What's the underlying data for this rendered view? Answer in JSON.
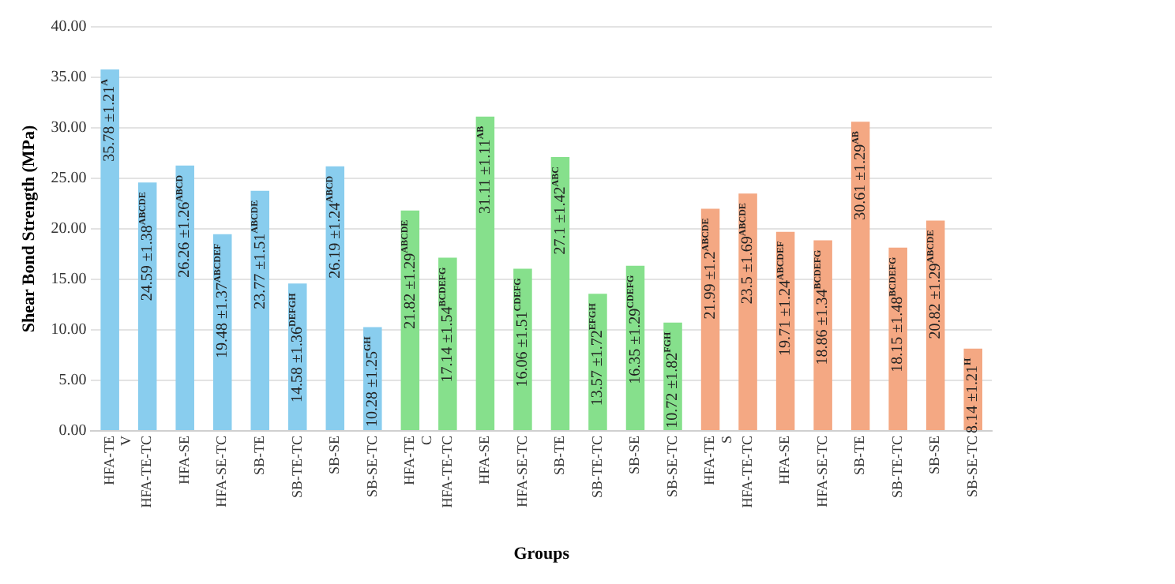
{
  "chart_data": {
    "type": "bar",
    "xlabel": "Groups",
    "ylabel": "Shear Bond Strength (MPa)",
    "categories": [
      "HFA-TE V",
      "HFA-TE-TC",
      "HFA-SE",
      "HFA-SE-TC",
      "SB-TE",
      "SB-TE-TC",
      "SB-SE",
      "SB-SE-TC",
      "HFA-TE C",
      "HFA-TE-TC",
      "HFA-SE",
      "HFA-SE-TC",
      "SB-TE",
      "SB-TE-TC",
      "SB-SE",
      "SB-SE-TC",
      "HFA-TE S",
      "HFA-TE-TC",
      "HFA-SE",
      "HFA-SE-TC",
      "SB-TE",
      "SB-TE-TC",
      "SB-SE",
      "SB-SE-TC"
    ],
    "values": [
      35.78,
      24.59,
      26.26,
      19.48,
      23.77,
      14.58,
      26.19,
      10.28,
      21.82,
      17.14,
      31.11,
      16.06,
      27.1,
      13.57,
      16.35,
      10.72,
      21.99,
      23.5,
      19.71,
      18.86,
      30.61,
      18.15,
      20.82,
      8.14
    ],
    "colors": [
      "#89cdee",
      "#89cdee",
      "#89cdee",
      "#89cdee",
      "#89cdee",
      "#89cdee",
      "#89cdee",
      "#89cdee",
      "#86e08c",
      "#86e08c",
      "#86e08c",
      "#86e08c",
      "#86e08c",
      "#86e08c",
      "#86e08c",
      "#86e08c",
      "#f4a883",
      "#f4a883",
      "#f4a883",
      "#f4a883",
      "#f4a883",
      "#f4a883",
      "#f4a883",
      "#f4a883"
    ],
    "value_labels": [
      "35.78 ±1.21$^{A}$",
      "24.59 ±1.38$^{ABCDE}$",
      "26.26 ±1.26$^{ABCD}$",
      "19.48 ±1.37$^{ABCDEF}$",
      "23.77 ±1.51$^{ABCDE}$",
      "14.58 ±1.36$^{DEFGH}$",
      "26.19 ±1.24$^{ABCD}$",
      "10.28 ±1.25$^{GH}$",
      "21.82 ±1.29$^{ABCDE}$",
      "17.14 ±1.54$^{BCDEFG}$",
      "31.11 ±1.11$^{AB}$",
      "16.06 ±1.51$^{CDEFG}$",
      "27.1 ±1.42$^{ABC}$",
      "13.57 ±1.72$^{EFGH}$",
      "16.35 ±1.29$^{CDEFG}$",
      "10.72 ±1.82$^{FGH}$",
      "21.99 ±1.2$^{ABCDE}$",
      "23.5 ±1.69$^{ABCDE}$",
      "19.71 ±1.24$^{ABCDEF}$",
      "18.86 ±1.34$^{BCDEFG}$",
      "30.61 ±1.29$^{AB}$",
      "18.15 ±1.48$^{BCDEFG}$",
      "20.82 ±1.29$^{ABCDE}$",
      "8.14 ±1.21$^{H}$"
    ],
    "ylim": [
      0,
      40
    ],
    "yticks": [
      {
        "value": 0,
        "label": "0.00"
      },
      {
        "value": 5,
        "label": "5.00"
      },
      {
        "value": 10,
        "label": "10.00"
      },
      {
        "value": 15,
        "label": "15.00"
      },
      {
        "value": 20,
        "label": "20.00"
      },
      {
        "value": 25,
        "label": "25.00"
      },
      {
        "value": 30,
        "label": "30.00"
      },
      {
        "value": 35,
        "label": "35.00"
      },
      {
        "value": 40,
        "label": "40.00"
      }
    ],
    "grid": "y",
    "legend": false
  }
}
